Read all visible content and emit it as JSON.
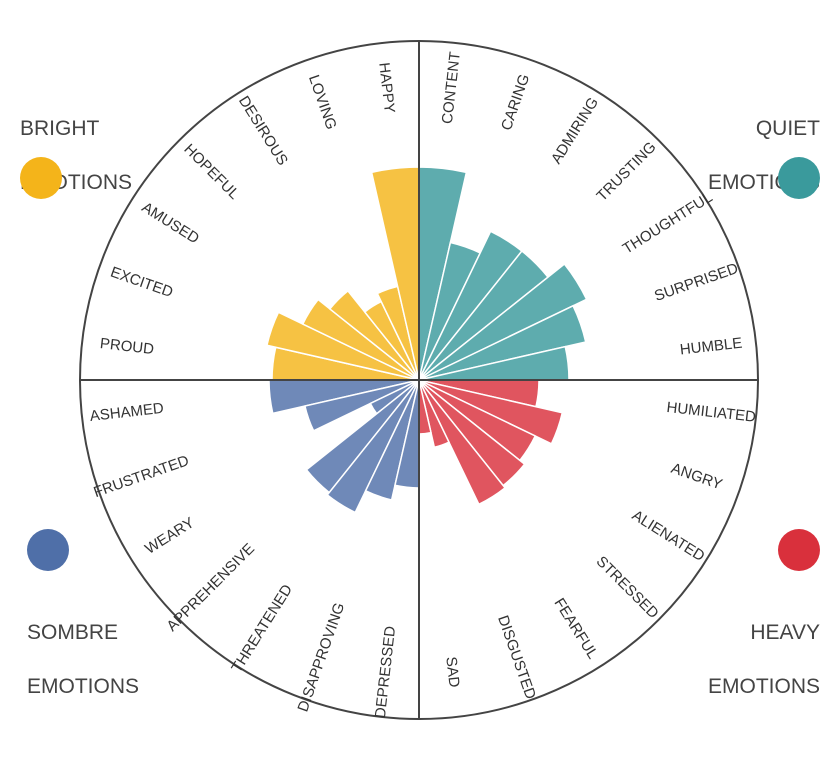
{
  "legend": {
    "bright": {
      "line1": "BRIGHT",
      "line2": "EMOTIONS",
      "color": "#f4b41a"
    },
    "quiet": {
      "line1": "QUIET",
      "line2": "EMOTIONS",
      "color": "#3a9a9c"
    },
    "sombre": {
      "line1": "SOMBRE",
      "line2": "EMOTIONS",
      "color": "#4f6fa8"
    },
    "heavy": {
      "line1": "HEAVY",
      "line2": "EMOTIONS",
      "color": "#d9303c"
    }
  },
  "chart_data": {
    "type": "radial-bar",
    "max_value": 100,
    "groups": [
      {
        "name": "BRIGHT EMOTIONS",
        "color": "#f4b41a",
        "categories": [
          "PROUD",
          "EXCITED",
          "AMUSED",
          "HOPEFUL",
          "DESIROUS",
          "LOVING",
          "HAPPY"
        ],
        "values": [
          49,
          52,
          43,
          38,
          29,
          32,
          71
        ]
      },
      {
        "name": "QUIET EMOTIONS",
        "color": "#3a9a9c",
        "categories": [
          "CONTENT",
          "CARING",
          "ADMIRING",
          "TRUSTING",
          "THOUGHTFUL",
          "SURPRISED",
          "HUMBLE"
        ],
        "values": [
          71,
          47,
          55,
          55,
          62,
          57,
          50
        ]
      },
      {
        "name": "SOMBRE EMOTIONS",
        "color": "#4f6fa8",
        "categories": [
          "ASHAMED",
          "FRUSTRATED",
          "WEARY",
          "APPREHENSIVE",
          "THREATENED",
          "DISAPPROVING",
          "DEPRESSED"
        ],
        "values": [
          50,
          39,
          18,
          48,
          49,
          41,
          36
        ]
      },
      {
        "name": "HEAVY EMOTIONS",
        "color": "#d9303c",
        "categories": [
          "HUMILIATED",
          "ANGRY",
          "ALIENATED",
          "STRESSED",
          "FEARFUL",
          "DISGUSTED",
          "SAD"
        ],
        "values": [
          40,
          49,
          43,
          45,
          46,
          23,
          18
        ]
      }
    ]
  }
}
